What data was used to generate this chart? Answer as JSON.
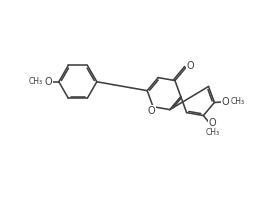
{
  "bg_color": "#ffffff",
  "line_color": "#404040",
  "line_width": 1.15,
  "font_size": 7.0,
  "figsize": [
    2.75,
    2.22
  ],
  "dpi": 100,
  "xlim": [
    -0.5,
    10.5
  ],
  "ylim": [
    -0.5,
    8.5
  ]
}
